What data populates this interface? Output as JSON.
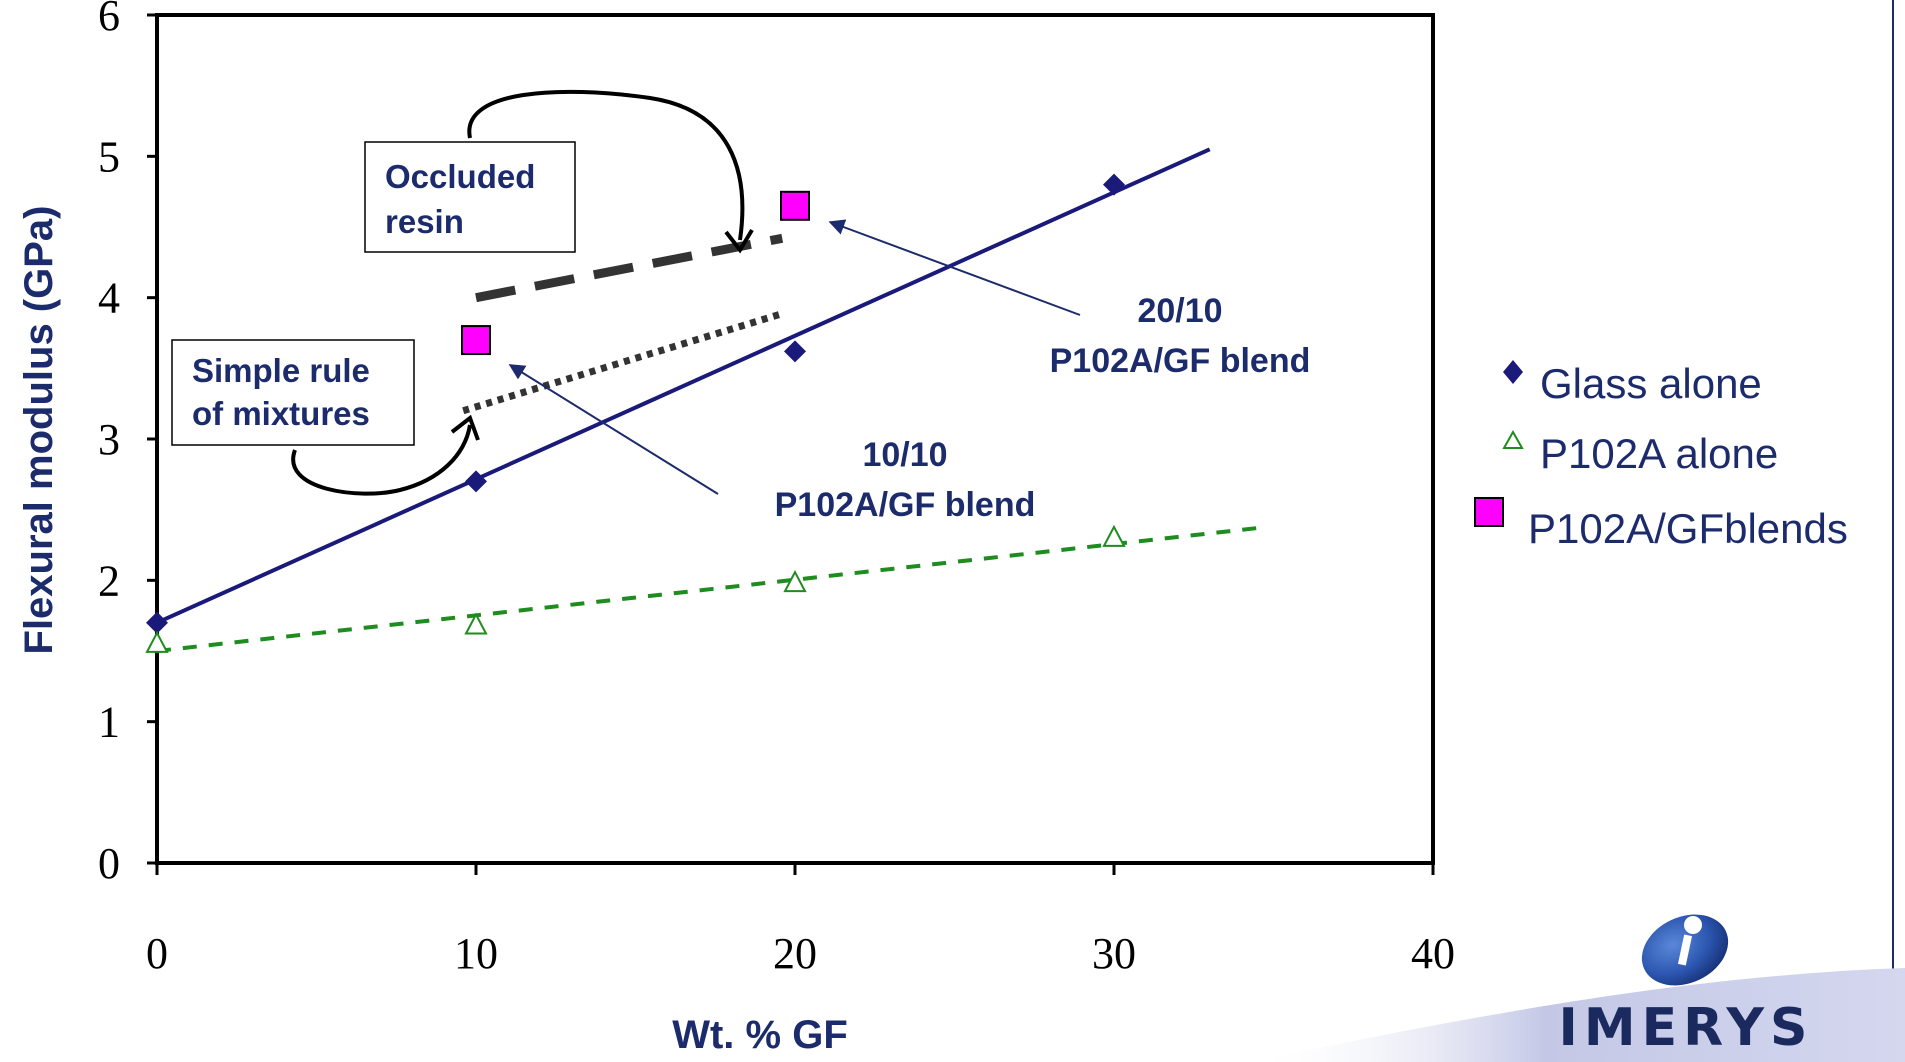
{
  "chart_data": {
    "type": "scatter",
    "title": "",
    "xlabel": "Wt. % GF",
    "ylabel": "Flexural modulus (GPa)",
    "xlim": [
      0,
      40
    ],
    "ylim": [
      0,
      6
    ],
    "x_ticks": [
      "0",
      "10",
      "20",
      "30",
      "40"
    ],
    "y_ticks": [
      "0",
      "1",
      "2",
      "3",
      "4",
      "5",
      "6"
    ],
    "grid": false,
    "legend_position": "right",
    "series": [
      {
        "name": "Glass alone",
        "marker": "diamond",
        "color": "#1a1a7a",
        "x": [
          0,
          10,
          20,
          30
        ],
        "y": [
          1.7,
          2.7,
          3.62,
          4.8
        ],
        "trendline": {
          "style": "solid",
          "x": [
            0,
            33
          ],
          "y": [
            1.7,
            5.05
          ]
        }
      },
      {
        "name": "P102A alone",
        "marker": "open-triangle",
        "color": "#1e8c1e",
        "x": [
          0,
          10,
          20,
          30
        ],
        "y": [
          1.55,
          1.68,
          1.98,
          2.3
        ],
        "trendline": {
          "style": "dashed",
          "x": [
            0,
            34.5
          ],
          "y": [
            1.5,
            2.37
          ]
        }
      },
      {
        "name": "P102A/GFblends",
        "marker": "square",
        "color": "#ff00ff",
        "x": [
          10,
          20
        ],
        "y": [
          3.7,
          4.65
        ]
      }
    ],
    "guide_lines": [
      {
        "label": "Occluded resin",
        "style": "long-dash",
        "color": "#333333",
        "x": [
          10,
          19.6
        ],
        "y": [
          4.0,
          4.42
        ]
      },
      {
        "label": "Simple rule of mixtures",
        "style": "dotted",
        "color": "#333333",
        "x": [
          9.6,
          19.5
        ],
        "y": [
          3.2,
          3.88
        ]
      }
    ],
    "annotations": {
      "blend_2010": [
        "20/10",
        "P102A/GF blend"
      ],
      "blend_1010": [
        "10/10",
        "P102A/GF blend"
      ],
      "occluded_box": [
        "Occluded",
        "resin"
      ],
      "rule_box": [
        "Simple rule",
        "of mixtures"
      ]
    }
  },
  "logo": {
    "text": "IMERYS"
  },
  "colors": {
    "accent": "#1c2b6b",
    "glass": "#1a1a7a",
    "p102a": "#1e8c1e",
    "blend": "#ff00ff",
    "axis": "#000000"
  }
}
